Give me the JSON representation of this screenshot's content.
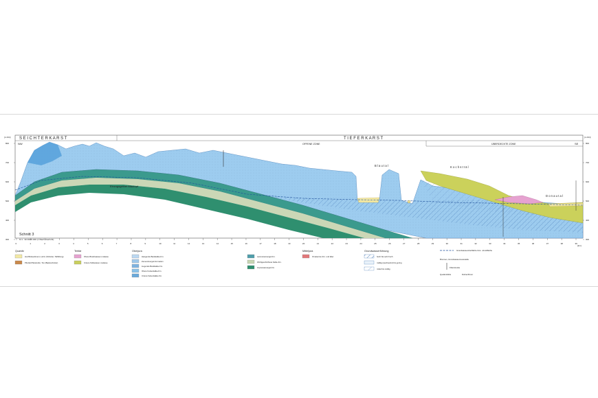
{
  "header": {
    "left_title": "S E I C H T E R      K A R S T",
    "right_title": "T I E F E R   K A R S T",
    "nw": "NW",
    "se": "SE",
    "zone_open": "OFFENE ZONE",
    "zone_covered": "ÜBERDECKTE ZONE",
    "elev_unit_left": "[m NN]",
    "elev_unit_right": "[m NN]"
  },
  "profile": {
    "title": "Schnitt 3",
    "scale": "M 1 : 30 000/4 000 (7,5fach überhöht)",
    "catchment_label": "Einzugsgebiet Blautopf",
    "place_blautal": "B l a u t a l",
    "place_kochsttal": "K o c h s t t ä l",
    "place_donautal": "D o n a u t a l",
    "km_unit": "[km]",
    "elev_ticks": [
      "800",
      "700",
      "600",
      "500",
      "400",
      "300"
    ],
    "km_ticks": [
      "0",
      "1",
      "2",
      "3",
      "4",
      "5",
      "6",
      "7",
      "8",
      "9",
      "10",
      "11",
      "12",
      "13",
      "14",
      "15",
      "16",
      "17",
      "18",
      "19",
      "20",
      "21",
      "22",
      "23",
      "24",
      "25",
      "26",
      "27",
      "28",
      "29",
      "30",
      "31",
      "32",
      "33",
      "34",
      "35",
      "36",
      "37",
      "38",
      "39"
    ]
  },
  "legend": {
    "quartaer": {
      "title": "Quartär",
      "items": [
        "Hochflutsediment, Lehm (Schotter, Talfüllung)",
        "Pliozän/Pleistozän, Ton (Basisschotter)"
      ],
      "colors": [
        "#f3e9a4",
        "#c9894b"
      ]
    },
    "tertiaer": {
      "title": "Tertiär",
      "items": [
        "Obere Brackwasser-molasse",
        "Untere Süßwasser-molasse"
      ],
      "colors": [
        "#e6a2d0",
        "#c9cf5e"
      ]
    },
    "oberjura": {
      "title": "Oberjura",
      "items": [
        "Hangende Bankkalke-Fm.",
        "Zementmergel-Formation",
        "Liegende Bankkalke-Fm.",
        "Obere Felsenkalke-Fm.",
        "Untere Felsenkalke-Fm."
      ],
      "colors": [
        "#bcd9f2",
        "#9fc8ea",
        "#7fb3df",
        "#8ac2e8",
        "#6aa9da"
      ]
    },
    "mitteljura": {
      "items": [
        "Lacunosamergel-Fm.",
        "Wohlgeschichtete Kalke-Fm.",
        "Impressamergel-Fm."
      ],
      "colors": [
        "#4f9eab",
        "#c8d6b3",
        "#2f8f6f"
      ]
    },
    "mitteljura2": {
      "title": "Mitteljura",
      "items": [
        "Ornatenton-Fm. und älter"
      ],
      "colors": [
        "#e2787a"
      ]
    },
    "gw": {
      "title": "Grundwasserführung",
      "items": [
        "hoch bis sehr hoch",
        "mäßig (wechselnd) bis gering",
        "mittel bis mäßig"
      ]
    },
    "symbols": {
      "items": [
        "Grundwasseroberfläche bzw. -druckfläche",
        "Brunnen, Grundwassermessstelle",
        "Filterstrecke"
      ],
      "footer_left": "Quelle/Höhle",
      "footer_right": "Doline/Ponor"
    }
  }
}
